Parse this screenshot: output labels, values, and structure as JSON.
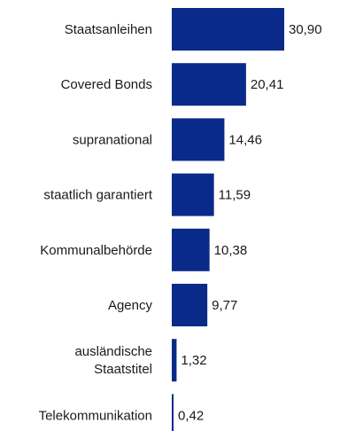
{
  "chart_data": {
    "type": "bar",
    "orientation": "horizontal",
    "categories": [
      [
        "Staatsanleihen"
      ],
      [
        "Covered Bonds"
      ],
      [
        "supranational"
      ],
      [
        "staatlich garantiert"
      ],
      [
        "Kommunalbehörde"
      ],
      [
        "Agency"
      ],
      [
        "ausländische",
        "Staatstitel"
      ],
      [
        "Telekommunikation"
      ]
    ],
    "values": [
      30.9,
      20.41,
      14.46,
      11.59,
      10.38,
      9.77,
      1.32,
      0.42
    ],
    "value_labels": [
      "30,90",
      "20,41",
      "14,46",
      "11,59",
      "10,38",
      "9,77",
      "1,32",
      "0,42"
    ],
    "xlim": [
      0,
      30.9
    ],
    "grid": false,
    "legend": "none",
    "bar_color": "#0a2a8a"
  }
}
